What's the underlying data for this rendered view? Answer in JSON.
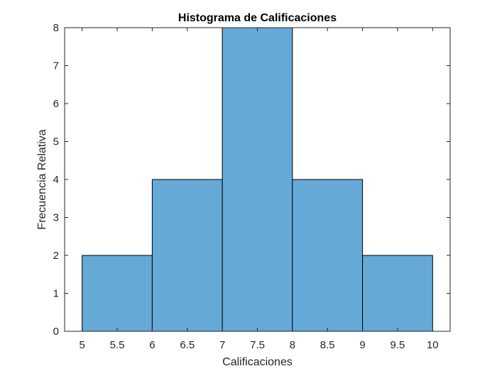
{
  "chart_data": {
    "type": "bar",
    "title": "Histograma de Calificaciones",
    "xlabel": "Calificaciones",
    "ylabel": "Frecuencia Relativa",
    "bin_edges": [
      5,
      6,
      7,
      8,
      9,
      10
    ],
    "values": [
      2,
      4,
      8,
      4,
      2
    ],
    "xlim": [
      4.75,
      10.25
    ],
    "ylim": [
      0,
      8
    ],
    "x_ticks": [
      "5",
      "5.5",
      "6",
      "6.5",
      "7",
      "7.5",
      "8",
      "8.5",
      "9",
      "9.5",
      "10"
    ],
    "y_ticks": [
      "0",
      "1",
      "2",
      "3",
      "4",
      "5",
      "6",
      "7",
      "8"
    ],
    "grid": false,
    "bar_color": "#65A9D7",
    "edge_color": "#000000"
  }
}
